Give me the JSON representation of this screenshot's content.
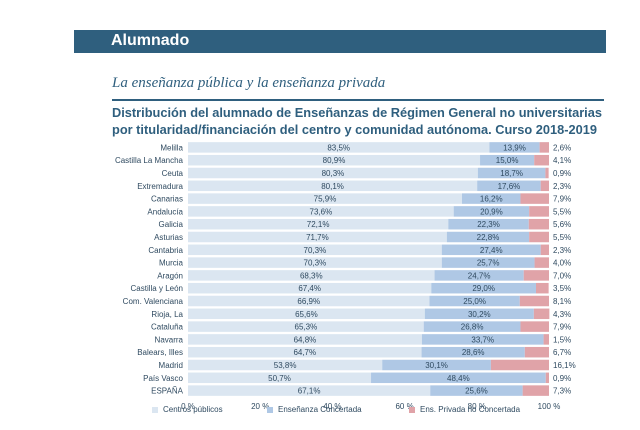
{
  "header": {
    "title": "Alumnado"
  },
  "section": {
    "subtitle": "La enseñanza pública y la enseñanza privada"
  },
  "colors": {
    "banner": "#2f5f7e",
    "publico": "#dbe6f1",
    "concertada": "#afc8e5",
    "privada": "#e0a3a8"
  },
  "chart_data": {
    "type": "bar",
    "orientation": "horizontal",
    "stacked": true,
    "title_lines": [
      "Distribución del alumnado de Enseñanzas de Régimen General no universitarias",
      "por titularidad/financiación del centro y comunidad autónoma. Curso 2018-2019"
    ],
    "categories": [
      "Melilla",
      "Castilla La Mancha",
      "Ceuta",
      "Extremadura",
      "Canarias",
      "Andalucía",
      "Galicia",
      "Asturias",
      "Cantabria",
      "Murcia",
      "Aragón",
      "Castilla y León",
      "Com. Valenciana",
      "Rioja, La",
      "Cataluña",
      "Navarra",
      "Balears, Illes",
      "Madrid",
      "País Vasco",
      "ESPAÑA"
    ],
    "series": [
      {
        "name": "Centros públicos",
        "values": [
          83.5,
          80.9,
          80.3,
          80.1,
          75.9,
          73.6,
          72.1,
          71.7,
          70.3,
          70.3,
          68.3,
          67.4,
          66.9,
          65.6,
          65.3,
          64.8,
          64.7,
          53.8,
          50.7,
          67.1
        ],
        "labels": [
          "83,5%",
          "80,9%",
          "80,3%",
          "80,1%",
          "75,9%",
          "73,6%",
          "72,1%",
          "71,7%",
          "70,3%",
          "70,3%",
          "68,3%",
          "67,4%",
          "66,9%",
          "65,6%",
          "65,3%",
          "64,8%",
          "64,7%",
          "53,8%",
          "50,7%",
          "67,1%"
        ]
      },
      {
        "name": "Enseñanza Concertada",
        "values": [
          13.9,
          15.0,
          18.7,
          17.6,
          16.2,
          20.9,
          22.3,
          22.8,
          27.4,
          25.7,
          24.7,
          29.0,
          25.0,
          30.2,
          26.8,
          33.7,
          28.6,
          30.1,
          48.4,
          25.6
        ],
        "labels": [
          "13,9%",
          "15,0%",
          "18,7%",
          "17,6%",
          "16,2%",
          "20,9%",
          "22,3%",
          "22,8%",
          "27,4%",
          "25,7%",
          "24,7%",
          "29,0%",
          "25,0%",
          "30,2%",
          "26,8%",
          "33,7%",
          "28,6%",
          "30,1%",
          "48,4%",
          "25,6%"
        ]
      },
      {
        "name": "Ens. Privada no Concertada",
        "values": [
          2.6,
          4.1,
          0.9,
          2.3,
          7.9,
          5.5,
          5.6,
          5.5,
          2.3,
          4.0,
          7.0,
          3.5,
          8.1,
          4.3,
          7.9,
          1.5,
          6.7,
          16.1,
          0.9,
          7.3
        ],
        "labels": [
          "2,6%",
          "4,1%",
          "0,9%",
          "2,3%",
          "7,9%",
          "5,5%",
          "5,6%",
          "5,5%",
          "2,3%",
          "4,0%",
          "7,0%",
          "3,5%",
          "8,1%",
          "4,3%",
          "7,9%",
          "1,5%",
          "6,7%",
          "16,1%",
          "0,9%",
          "7,3%"
        ]
      }
    ],
    "xlim": [
      0,
      100
    ],
    "xticks": [
      "0 %",
      "20 %",
      "40 %",
      "60 %",
      "80 %",
      "100 %"
    ],
    "legend_position": "bottom"
  }
}
